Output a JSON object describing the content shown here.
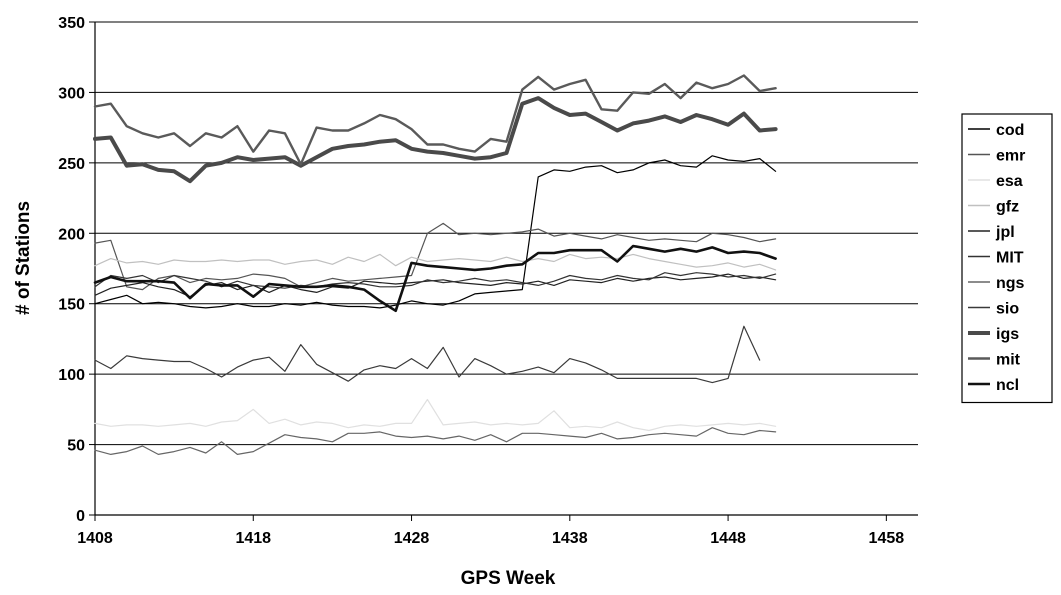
{
  "chart_data": {
    "type": "line",
    "title": "",
    "xlabel": "GPS Week",
    "ylabel": "# of Stations",
    "xlim": [
      1408,
      1460
    ],
    "ylim": [
      0,
      350
    ],
    "x_ticks": [
      1408,
      1418,
      1428,
      1438,
      1448,
      1458
    ],
    "x_tick_labels": [
      "1408",
      "1418",
      "1428",
      "1438",
      "1448",
      "1458"
    ],
    "y_ticks": [
      0,
      50,
      100,
      150,
      200,
      250,
      300,
      350
    ],
    "y_tick_labels": [
      "0",
      "50",
      "100",
      "150",
      "200",
      "250",
      "300",
      "350"
    ],
    "grid": "horizontal",
    "legend_position": "right",
    "x": [
      1408,
      1409,
      1410,
      1411,
      1412,
      1413,
      1414,
      1415,
      1416,
      1417,
      1418,
      1419,
      1420,
      1421,
      1422,
      1423,
      1424,
      1425,
      1426,
      1427,
      1428,
      1429,
      1430,
      1431,
      1432,
      1433,
      1434,
      1435,
      1436,
      1437,
      1438,
      1439,
      1440,
      1441,
      1442,
      1443,
      1444,
      1445,
      1446,
      1447,
      1448,
      1449,
      1450,
      1451
    ],
    "series": [
      {
        "name": "cod",
        "color": "#000000",
        "width": 1.2,
        "values": [
          150,
          153,
          156,
          150,
          151,
          150,
          148,
          147,
          148,
          150,
          148,
          148,
          150,
          149,
          151,
          149,
          148,
          148,
          147,
          149,
          152,
          150,
          149,
          152,
          157,
          158,
          159,
          160,
          240,
          245,
          244,
          247,
          248,
          243,
          245,
          250,
          252,
          248,
          247,
          255,
          252,
          251,
          253,
          244
        ]
      },
      {
        "name": "emr",
        "color": "#555555",
        "width": 1.2,
        "values": [
          193,
          195,
          162,
          160,
          168,
          170,
          165,
          168,
          167,
          168,
          171,
          170,
          168,
          162,
          165,
          168,
          166,
          167,
          168,
          169,
          170,
          200,
          207,
          199,
          200,
          199,
          200,
          201,
          203,
          198,
          200,
          198,
          196,
          199,
          197,
          195,
          196,
          195,
          194,
          200,
          199,
          197,
          194,
          196
        ]
      },
      {
        "name": "esa",
        "color": "#e0e0e0",
        "width": 1.2,
        "values": [
          65,
          63,
          64,
          64,
          63,
          64,
          65,
          63,
          66,
          67,
          75,
          65,
          68,
          64,
          66,
          65,
          62,
          64,
          63,
          65,
          65,
          82,
          64,
          65,
          66,
          64,
          65,
          64,
          65,
          74,
          62,
          63,
          62,
          66,
          62,
          60,
          63,
          64,
          63,
          64,
          65,
          64,
          65,
          63
        ]
      },
      {
        "name": "gfz",
        "color": "#c0c0c0",
        "width": 1.2,
        "values": [
          177,
          182,
          179,
          180,
          178,
          181,
          180,
          180,
          181,
          180,
          181,
          181,
          178,
          180,
          181,
          178,
          183,
          180,
          185,
          177,
          183,
          180,
          181,
          182,
          181,
          180,
          183,
          180,
          182,
          180,
          185,
          182,
          183,
          182,
          185,
          182,
          180,
          178,
          176,
          177,
          179,
          176,
          178,
          174
        ]
      },
      {
        "name": "jpl",
        "color": "#222222",
        "width": 1.2,
        "values": [
          156,
          161,
          163,
          165,
          162,
          160,
          155,
          163,
          165,
          160,
          163,
          158,
          163,
          160,
          158,
          162,
          161,
          166,
          165,
          164,
          165,
          166,
          167,
          165,
          164,
          163,
          165,
          164,
          166,
          163,
          167,
          166,
          165,
          168,
          166,
          168,
          169,
          167,
          168,
          169,
          171,
          168,
          169,
          167
        ]
      },
      {
        "name": "MIT",
        "color": "#333333",
        "width": 1.2,
        "values": [
          162,
          170,
          168,
          170,
          165,
          170,
          168,
          166,
          162,
          166,
          163,
          162,
          161,
          163,
          162,
          164,
          165,
          164,
          162,
          162,
          163,
          167,
          165,
          166,
          168,
          166,
          167,
          165,
          163,
          166,
          170,
          168,
          167,
          170,
          168,
          167,
          172,
          170,
          172,
          171,
          169,
          170,
          168,
          171
        ]
      },
      {
        "name": "ngs",
        "color": "#666666",
        "width": 1.2,
        "values": [
          46,
          43,
          45,
          49,
          43,
          45,
          48,
          44,
          52,
          43,
          45,
          51,
          57,
          55,
          54,
          52,
          58,
          58,
          59,
          56,
          55,
          56,
          54,
          56,
          53,
          57,
          52,
          58,
          58,
          57,
          56,
          55,
          58,
          54,
          55,
          57,
          58,
          57,
          56,
          62,
          58,
          57,
          60,
          59
        ]
      },
      {
        "name": "sio",
        "color": "#3a3a3a",
        "width": 1.2,
        "values": [
          110,
          104,
          113,
          111,
          110,
          109,
          109,
          104,
          98,
          105,
          110,
          112,
          102,
          121,
          107,
          101,
          95,
          103,
          106,
          104,
          111,
          104,
          119,
          98,
          111,
          106,
          100,
          102,
          105,
          101,
          111,
          108,
          103,
          97,
          97,
          97,
          97,
          97,
          97,
          94,
          97,
          134,
          110,
          null
        ]
      },
      {
        "name": "igs",
        "color": "#4a4a4a",
        "width": 4,
        "values": [
          267,
          268,
          248,
          249,
          245,
          244,
          237,
          248,
          250,
          254,
          252,
          253,
          254,
          248,
          254,
          260,
          262,
          263,
          265,
          266,
          260,
          258,
          257,
          255,
          253,
          254,
          257,
          292,
          296,
          289,
          284,
          285,
          279,
          273,
          278,
          280,
          283,
          279,
          284,
          281,
          277,
          285,
          273,
          274
        ]
      },
      {
        "name": "mit",
        "color": "#5a5a5a",
        "width": 2.4,
        "values": [
          290,
          292,
          276,
          271,
          268,
          271,
          262,
          271,
          268,
          276,
          258,
          273,
          271,
          249,
          275,
          273,
          273,
          278,
          284,
          281,
          274,
          263,
          263,
          260,
          258,
          267,
          265,
          302,
          311,
          302,
          306,
          309,
          288,
          287,
          300,
          299,
          306,
          296,
          307,
          303,
          306,
          312,
          301,
          303
        ]
      },
      {
        "name": "ncl",
        "color": "#111111",
        "width": 2.6,
        "values": [
          165,
          169,
          166,
          166,
          166,
          165,
          154,
          164,
          163,
          163,
          155,
          164,
          163,
          162,
          162,
          163,
          162,
          160,
          152,
          145,
          179,
          177,
          176,
          175,
          174,
          175,
          177,
          178,
          186,
          186,
          188,
          188,
          188,
          180,
          191,
          189,
          187,
          189,
          187,
          190,
          186,
          187,
          186,
          182
        ]
      }
    ]
  }
}
